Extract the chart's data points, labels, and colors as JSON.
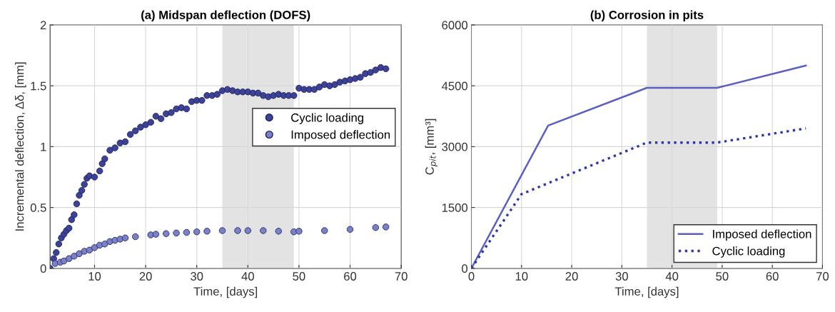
{
  "chart_data": [
    {
      "type": "scatter",
      "title": "(a) Midspan deflection (DOFS)",
      "xlabel": "Time, [days]",
      "ylabel": "Incremental deflection, Δδ, [mm]",
      "xlim": [
        1.3,
        70
      ],
      "xticks": [
        10,
        20,
        30,
        40,
        50,
        60,
        70
      ],
      "ylim": [
        0,
        2
      ],
      "yticks": [
        0,
        0.5,
        1,
        1.5,
        2
      ],
      "grid": true,
      "legend": "right",
      "marker": "circle",
      "bands": [
        {
          "axis": "x",
          "from": 35,
          "to": 49,
          "color": "#e3e3e3"
        }
      ],
      "series": [
        {
          "name": "Cyclic loading",
          "color": "#3d4299",
          "x": [
            1.3,
            2,
            2.5,
            3,
            3.5,
            4,
            4.5,
            5,
            5.5,
            6,
            6.5,
            7,
            7.5,
            8,
            8.5,
            9,
            10,
            11,
            11.5,
            12,
            13,
            14,
            15,
            16,
            17,
            18,
            19,
            20,
            21,
            22,
            23,
            24,
            25,
            26,
            27,
            28,
            29,
            30,
            31,
            32,
            33,
            34,
            35,
            36,
            37,
            38,
            39,
            40,
            41,
            42,
            43,
            44,
            45,
            46,
            47,
            48,
            49,
            50,
            51,
            52,
            53,
            54,
            55,
            56,
            57,
            58,
            59,
            60,
            61,
            62,
            63,
            64,
            65,
            66,
            67
          ],
          "values": [
            0.0,
            0.08,
            0.13,
            0.2,
            0.25,
            0.28,
            0.31,
            0.33,
            0.4,
            0.44,
            0.53,
            0.6,
            0.64,
            0.69,
            0.74,
            0.76,
            0.75,
            0.8,
            0.86,
            0.9,
            0.97,
            0.99,
            1.03,
            1.04,
            1.1,
            1.13,
            1.16,
            1.18,
            1.2,
            1.25,
            1.23,
            1.27,
            1.28,
            1.31,
            1.32,
            1.31,
            1.37,
            1.38,
            1.38,
            1.42,
            1.42,
            1.43,
            1.46,
            1.47,
            1.46,
            1.45,
            1.45,
            1.45,
            1.44,
            1.44,
            1.42,
            1.41,
            1.42,
            1.43,
            1.42,
            1.42,
            1.42,
            1.48,
            1.47,
            1.47,
            1.47,
            1.49,
            1.51,
            1.5,
            1.51,
            1.53,
            1.54,
            1.55,
            1.56,
            1.57,
            1.6,
            1.61,
            1.63,
            1.65,
            1.64
          ]
        },
        {
          "name": "Imposed deflection",
          "color": "#7b81c9",
          "x": [
            2.3,
            3.3,
            4,
            5,
            6,
            7,
            8,
            9,
            10,
            11,
            12,
            13,
            14,
            15,
            16,
            18,
            21,
            22,
            24,
            26,
            28,
            30,
            32,
            35,
            38,
            40,
            43,
            46,
            49,
            50,
            55,
            60,
            65,
            67
          ],
          "values": [
            0.04,
            0.05,
            0.06,
            0.08,
            0.1,
            0.12,
            0.14,
            0.15,
            0.17,
            0.19,
            0.2,
            0.22,
            0.23,
            0.24,
            0.25,
            0.26,
            0.275,
            0.28,
            0.285,
            0.29,
            0.295,
            0.3,
            0.305,
            0.31,
            0.31,
            0.31,
            0.31,
            0.305,
            0.3,
            0.305,
            0.31,
            0.32,
            0.335,
            0.34
          ]
        }
      ]
    },
    {
      "type": "line",
      "title": "(b) Corrosion in pits",
      "xlabel": "Time, [days]",
      "ylabel": "C$_{pit}$, [mm³]",
      "xlim": [
        0,
        70
      ],
      "xticks": [
        0,
        10,
        20,
        30,
        40,
        50,
        60,
        70
      ],
      "ylim": [
        0,
        6000
      ],
      "yticks": [
        0,
        1500,
        3000,
        4500,
        6000
      ],
      "grid": true,
      "legend": "bottom right",
      "marker": "none",
      "bands": [
        {
          "axis": "x",
          "from": 35,
          "to": 49,
          "color": "#e3e3e3"
        }
      ],
      "series": [
        {
          "name": "Imposed deflection",
          "color": "#5a5fc0",
          "line_style": "solid",
          "x": [
            0,
            15.3,
            35,
            49,
            66.7
          ],
          "values": [
            0,
            3520,
            4450,
            4450,
            5000
          ]
        },
        {
          "name": "Cyclic loading",
          "color": "#2f37a6",
          "line_style": "dotted",
          "x": [
            0,
            10,
            35,
            49,
            66.7
          ],
          "values": [
            0,
            1830,
            3100,
            3100,
            3450
          ]
        }
      ]
    }
  ]
}
